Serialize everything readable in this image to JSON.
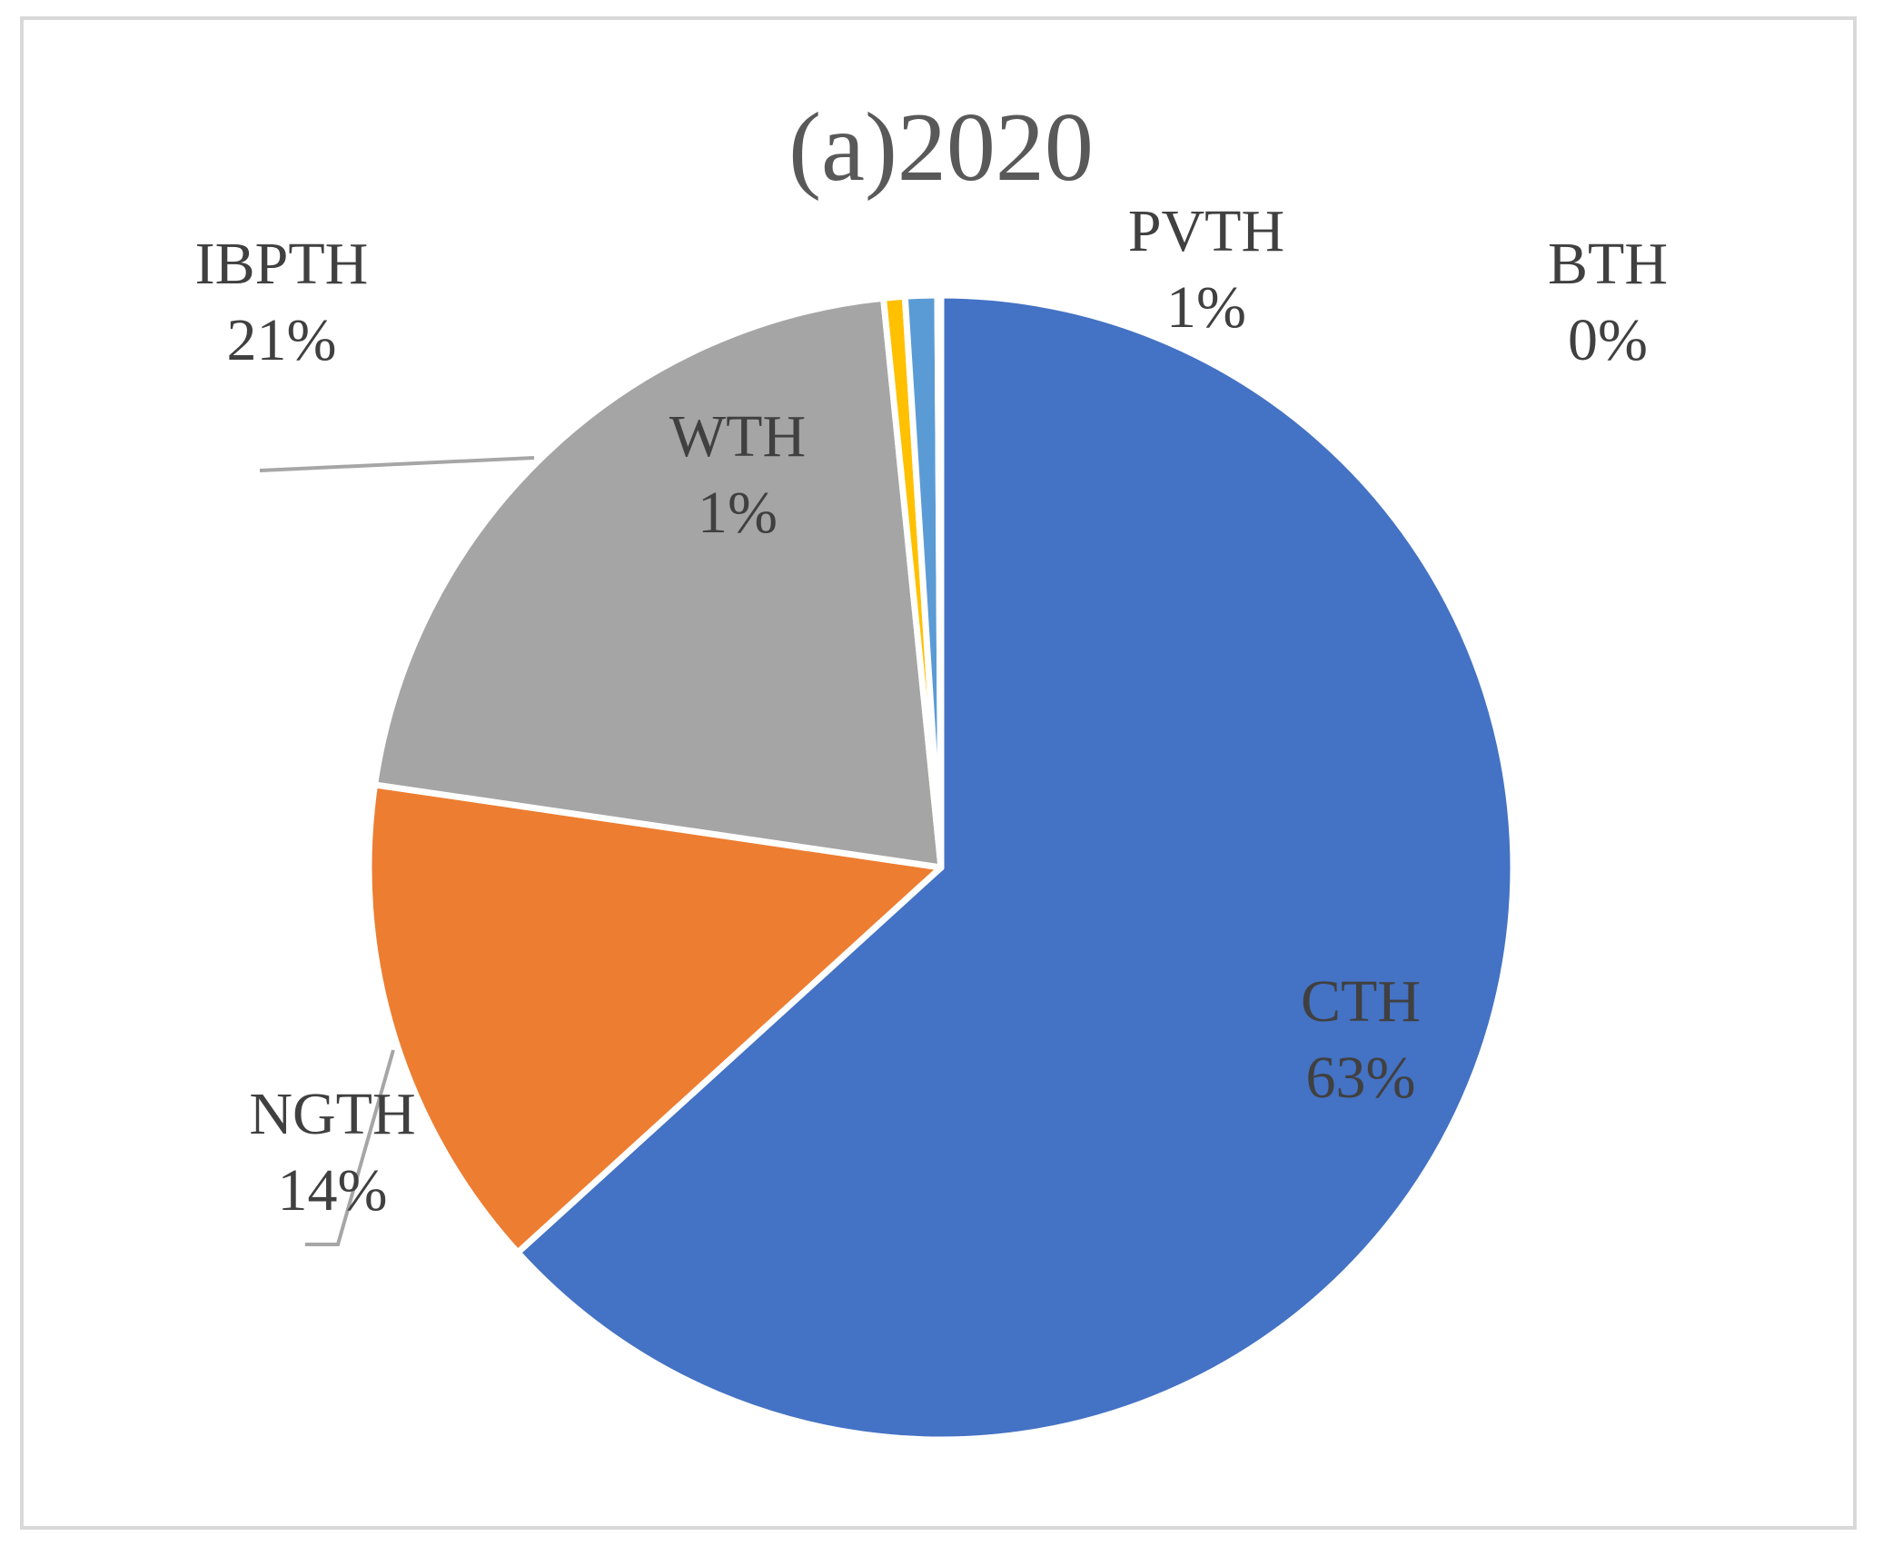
{
  "chart_data": {
    "type": "pie",
    "title": "(a)2020",
    "slices": [
      {
        "name": "CTH",
        "value": 63,
        "label": "63%",
        "color": "#4472C4"
      },
      {
        "name": "NGTH",
        "value": 14,
        "label": "14%",
        "color": "#ED7D31"
      },
      {
        "name": "IBPTH",
        "value": 21,
        "label": "21%",
        "color": "#A5A5A5"
      },
      {
        "name": "WTH",
        "value": 0.6,
        "label": "1%",
        "color": "#FFC000"
      },
      {
        "name": "PVTH",
        "value": 0.9,
        "label": "1%",
        "color": "#5B9BD5"
      },
      {
        "name": "BTH",
        "value": 0.1,
        "label": "0%",
        "color": "#70AD47"
      }
    ]
  }
}
